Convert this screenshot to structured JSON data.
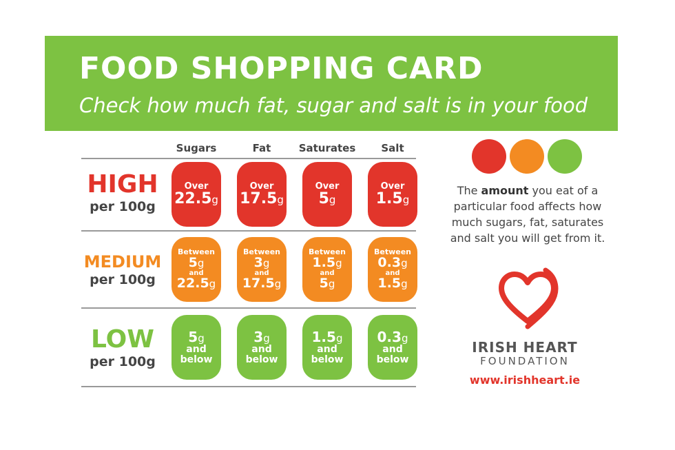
{
  "header": {
    "title": "FOOD SHOPPING CARD",
    "subtitle": "Check how much fat, sugar and salt is in your food"
  },
  "columns": [
    "Sugars",
    "Fat",
    "Saturates",
    "Salt"
  ],
  "rows": {
    "high": {
      "level": "HIGH",
      "per": "per 100g",
      "color": "#e2352b",
      "cells": [
        {
          "top": "Over",
          "value": "22.5",
          "unit": "g"
        },
        {
          "top": "Over",
          "value": "17.5",
          "unit": "g"
        },
        {
          "top": "Over",
          "value": "5",
          "unit": "g"
        },
        {
          "top": "Over",
          "value": "1.5",
          "unit": "g"
        }
      ]
    },
    "medium": {
      "level": "MEDIUM",
      "per": "per 100g",
      "color": "#f38b22",
      "cells": [
        {
          "top": "Between",
          "low": "5",
          "and": "and",
          "high": "22.5",
          "unit": "g"
        },
        {
          "top": "Between",
          "low": "3",
          "and": "and",
          "high": "17.5",
          "unit": "g"
        },
        {
          "top": "Between",
          "low": "1.5",
          "and": "and",
          "high": "5",
          "unit": "g"
        },
        {
          "top": "Between",
          "low": "0.3",
          "and": "and",
          "high": "1.5",
          "unit": "g"
        }
      ]
    },
    "low": {
      "level": "LOW",
      "per": "per 100g",
      "color": "#7dc242",
      "cells": [
        {
          "value": "5",
          "unit": "g",
          "and": "and",
          "below": "below"
        },
        {
          "value": "3",
          "unit": "g",
          "and": "and",
          "below": "below"
        },
        {
          "value": "1.5",
          "unit": "g",
          "and": "and",
          "below": "below"
        },
        {
          "value": "0.3",
          "unit": "g",
          "and": "and",
          "below": "below"
        }
      ]
    }
  },
  "traffic_lights": [
    "#e2352b",
    "#f38b22",
    "#7dc242"
  ],
  "info": {
    "pre": "The ",
    "bold": "amount",
    "post": " you eat of a particular food affects how much sugars, fat, saturates and salt you will get from it."
  },
  "org": {
    "name_line1": "IRISH HEART",
    "name_line2": "FOUNDATION",
    "url": "www.irishheart.ie",
    "logo_icon": "heart-logo-icon",
    "accent": "#e2352b"
  }
}
